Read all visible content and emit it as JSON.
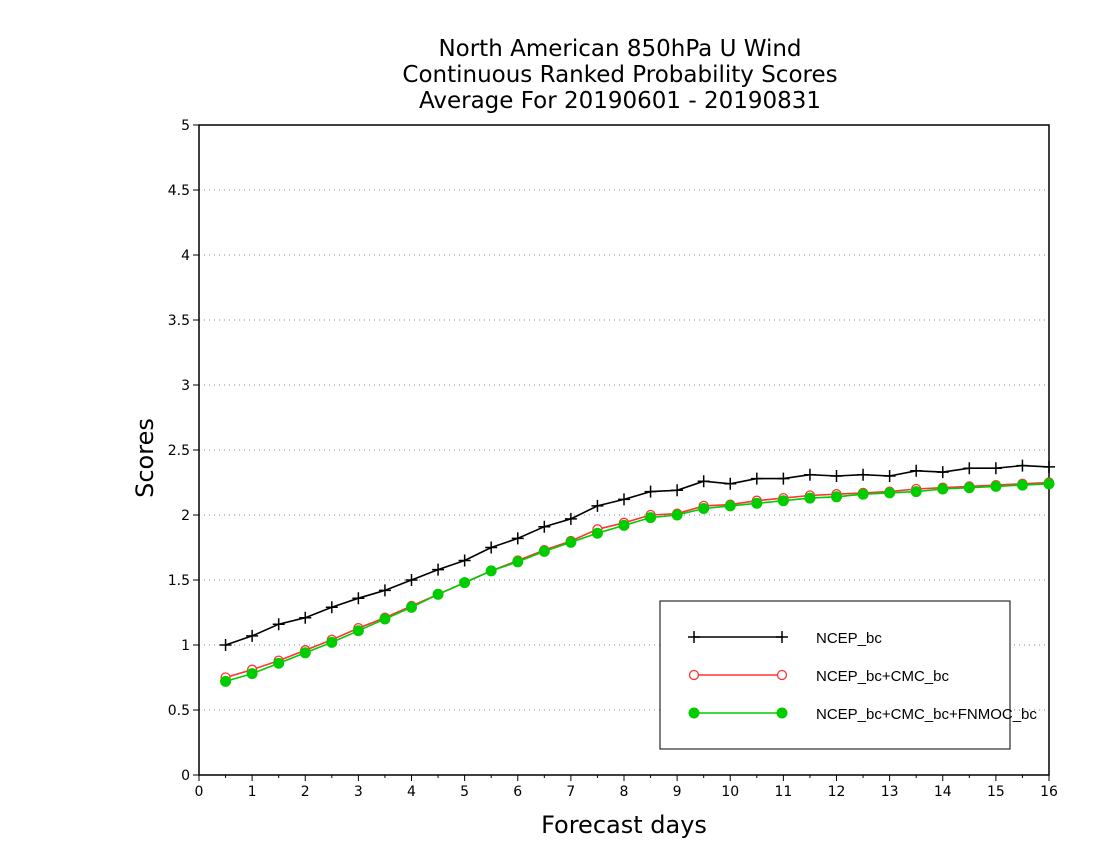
{
  "chart_data": {
    "type": "line",
    "title_lines": [
      "North American 850hPa U Wind",
      "Continuous Ranked Probability Scores",
      "Average For 20190601 - 20190831"
    ],
    "xlabel": "Forecast days",
    "ylabel": "Scores",
    "xlim": [
      0,
      16
    ],
    "ylim": [
      0,
      5
    ],
    "xticks": [
      0,
      1,
      2,
      3,
      4,
      5,
      6,
      7,
      8,
      9,
      10,
      11,
      12,
      13,
      14,
      15,
      16
    ],
    "yticks": [
      0,
      0.5,
      1,
      1.5,
      2,
      2.5,
      3,
      3.5,
      4,
      4.5,
      5
    ],
    "ytick_labels": [
      "0",
      "0.5",
      "1",
      "1.5",
      "2",
      "2.5",
      "3",
      "3.5",
      "4",
      "4.5",
      "5"
    ],
    "grid": "horizontal dotted",
    "legend_position": "bottom-right",
    "x": [
      0.5,
      1,
      1.5,
      2,
      2.5,
      3,
      3.5,
      4,
      4.5,
      5,
      5.5,
      6,
      6.5,
      7,
      7.5,
      8,
      8.5,
      9,
      9.5,
      10,
      10.5,
      11,
      11.5,
      12,
      12.5,
      13,
      13.5,
      14,
      14.5,
      15,
      15.5,
      16
    ],
    "series": [
      {
        "name": "NCEP_bc",
        "color": "#000000",
        "marker": "plus",
        "values": [
          1.0,
          1.07,
          1.16,
          1.21,
          1.29,
          1.36,
          1.42,
          1.5,
          1.58,
          1.65,
          1.75,
          1.82,
          1.91,
          1.97,
          2.07,
          2.12,
          2.18,
          2.19,
          2.26,
          2.24,
          2.28,
          2.28,
          2.31,
          2.3,
          2.31,
          2.3,
          2.34,
          2.33,
          2.36,
          2.36,
          2.38,
          2.37
        ]
      },
      {
        "name": "NCEP_bc+CMC_bc",
        "color": "#ff3333",
        "marker": "open-circle",
        "values": [
          0.75,
          0.81,
          0.88,
          0.96,
          1.04,
          1.13,
          1.21,
          1.3,
          1.39,
          1.48,
          1.57,
          1.65,
          1.73,
          1.8,
          1.89,
          1.94,
          2.0,
          2.01,
          2.07,
          2.08,
          2.11,
          2.13,
          2.15,
          2.16,
          2.17,
          2.18,
          2.2,
          2.21,
          2.22,
          2.23,
          2.24,
          2.25
        ]
      },
      {
        "name": "NCEP_bc+CMC_bc+FNMOC_bc",
        "color": "#00cc00",
        "marker": "filled-circle",
        "values": [
          0.72,
          0.78,
          0.86,
          0.94,
          1.02,
          1.11,
          1.2,
          1.29,
          1.39,
          1.48,
          1.57,
          1.64,
          1.72,
          1.79,
          1.86,
          1.92,
          1.98,
          2.0,
          2.05,
          2.07,
          2.09,
          2.11,
          2.13,
          2.14,
          2.16,
          2.17,
          2.18,
          2.2,
          2.21,
          2.22,
          2.23,
          2.24
        ]
      }
    ]
  }
}
